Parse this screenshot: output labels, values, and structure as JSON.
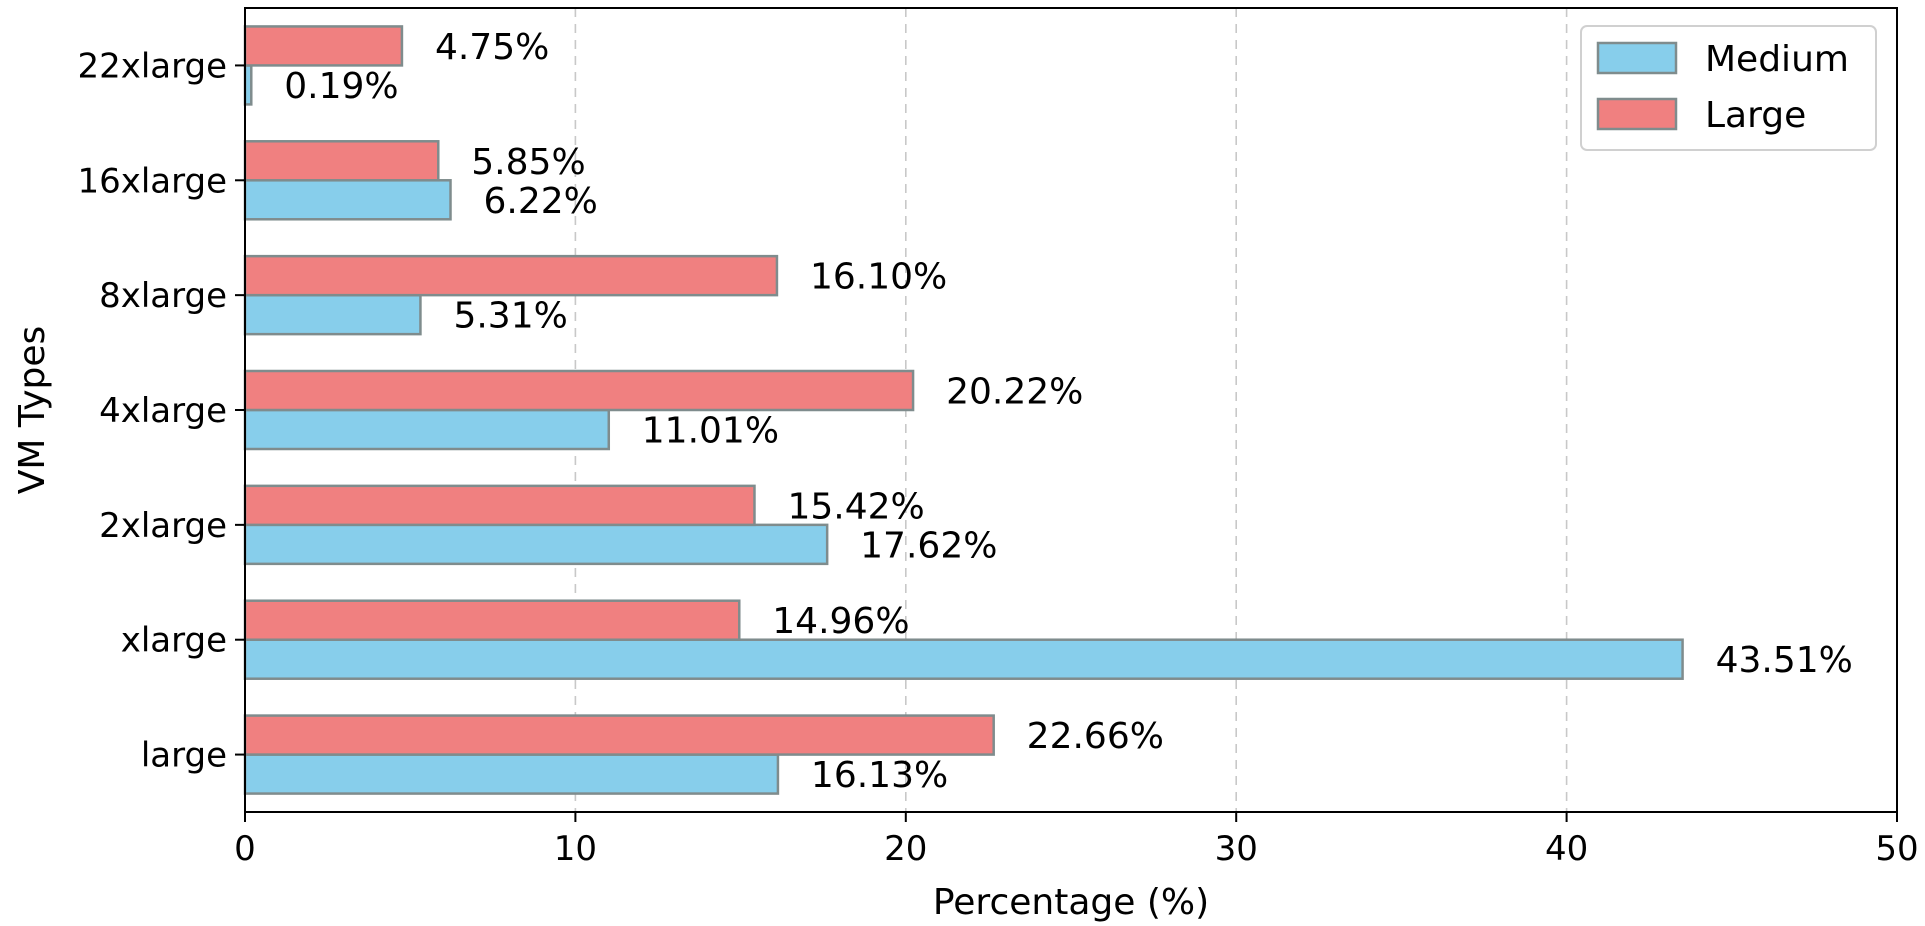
{
  "chart_data": {
    "type": "bar",
    "orientation": "horizontal",
    "title": "",
    "xlabel": "Percentage (%)",
    "ylabel": "VM Types",
    "xlim": [
      0,
      50
    ],
    "xticks": [
      0,
      10,
      20,
      30,
      40,
      50
    ],
    "grid": "x-dashed",
    "legend_position": "top-right",
    "categories": [
      "large",
      "xlarge",
      "2xlarge",
      "4xlarge",
      "8xlarge",
      "16xlarge",
      "22xlarge"
    ],
    "series": [
      {
        "name": "Medium",
        "color": "#87ceeb",
        "values": [
          16.13,
          43.51,
          17.62,
          11.01,
          5.31,
          6.22,
          0.19
        ],
        "labels": [
          "16.13%",
          "43.51%",
          "17.62%",
          "11.01%",
          "5.31%",
          "6.22%",
          "0.19%"
        ]
      },
      {
        "name": "Large",
        "color": "#f08080",
        "values": [
          22.66,
          14.96,
          15.42,
          20.22,
          16.1,
          5.85,
          4.75
        ],
        "labels": [
          "22.66%",
          "14.96%",
          "15.42%",
          "20.22%",
          "16.10%",
          "5.85%",
          "4.75%"
        ]
      }
    ]
  }
}
